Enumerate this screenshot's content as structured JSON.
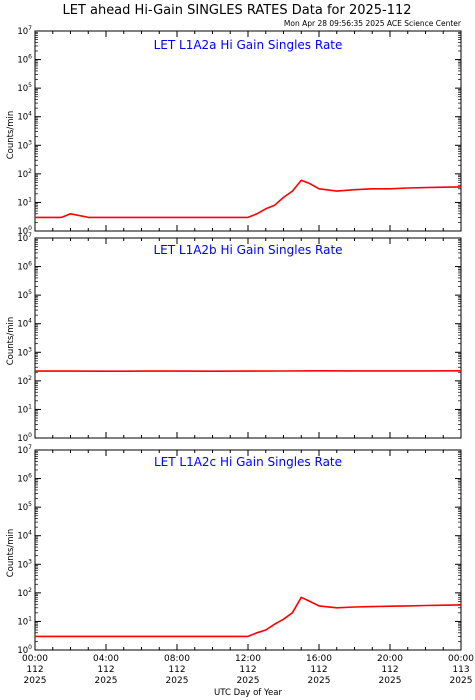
{
  "title": "LET ahead Hi-Gain SINGLES RATES Data for 2025-112",
  "timestamp": "Mon Apr 28 09:56:35 2025 ACE Science Center",
  "xlabel": "UTC Day of Year",
  "colors": {
    "series": "#ff0000",
    "panel_title": "#0000ff",
    "axes": "#000000"
  },
  "x_ticks": [
    {
      "time": "00:00",
      "day": "112",
      "year": "2025"
    },
    {
      "time": "04:00",
      "day": "112",
      "year": "2025"
    },
    {
      "time": "08:00",
      "day": "112",
      "year": "2025"
    },
    {
      "time": "12:00",
      "day": "112",
      "year": "2025"
    },
    {
      "time": "16:00",
      "day": "112",
      "year": "2025"
    },
    {
      "time": "20:00",
      "day": "112",
      "year": "2025"
    },
    {
      "time": "00:00",
      "day": "113",
      "year": "2025"
    }
  ],
  "chart_data": [
    {
      "type": "line",
      "title": "LET L1A2a Hi Gain Singles Rate",
      "ylabel": "Counts/min",
      "yscale": "log",
      "ylim": [
        1,
        10000000
      ],
      "xlim_hours": [
        0,
        24
      ],
      "y_tick_exponents": [
        0,
        1,
        2,
        3,
        4,
        5,
        6,
        7
      ],
      "series": [
        {
          "x_hours": [
            0,
            0.5,
            1,
            1.5,
            2,
            3,
            4,
            5,
            6,
            7,
            8,
            9,
            10,
            11,
            12,
            12.5,
            13,
            13.5,
            14,
            14.5,
            15,
            15.5,
            16,
            17,
            18,
            19,
            20,
            21,
            22,
            23,
            24
          ],
          "y": [
            3,
            3,
            3,
            3,
            4,
            3,
            3,
            3,
            3,
            3,
            3,
            3,
            3,
            3,
            3,
            4,
            6,
            8,
            15,
            25,
            60,
            45,
            30,
            25,
            28,
            30,
            30,
            32,
            33,
            34,
            35
          ]
        }
      ]
    },
    {
      "type": "line",
      "title": "LET L1A2b Hi Gain Singles Rate",
      "ylabel": "Counts/min",
      "yscale": "log",
      "ylim": [
        1,
        10000000
      ],
      "xlim_hours": [
        0,
        24
      ],
      "y_tick_exponents": [
        0,
        1,
        2,
        3,
        4,
        5,
        6,
        7
      ],
      "series": [
        {
          "x_hours": [
            0,
            2,
            4,
            6,
            8,
            10,
            12,
            14,
            16,
            18,
            20,
            22,
            24
          ],
          "y": [
            220,
            220,
            218,
            220,
            219,
            218,
            219,
            222,
            225,
            224,
            223,
            224,
            225
          ]
        }
      ]
    },
    {
      "type": "line",
      "title": "LET L1A2c Hi Gain Singles Rate",
      "ylabel": "Counts/min",
      "yscale": "log",
      "ylim": [
        1,
        10000000
      ],
      "xlim_hours": [
        0,
        24
      ],
      "y_tick_exponents": [
        0,
        1,
        2,
        3,
        4,
        5,
        6,
        7
      ],
      "series": [
        {
          "x_hours": [
            0,
            0.5,
            1,
            1.5,
            2,
            3,
            4,
            5,
            6,
            7,
            8,
            9,
            10,
            11,
            12,
            12.5,
            13,
            13.5,
            14,
            14.5,
            15,
            15.5,
            16,
            17,
            18,
            19,
            20,
            21,
            22,
            23,
            24
          ],
          "y": [
            3,
            3,
            3,
            3,
            3,
            3,
            3,
            3,
            3,
            3,
            3,
            3,
            3,
            3,
            3,
            4,
            5,
            8,
            12,
            20,
            70,
            50,
            35,
            30,
            32,
            33,
            34,
            35,
            36,
            37,
            38
          ]
        }
      ]
    }
  ]
}
